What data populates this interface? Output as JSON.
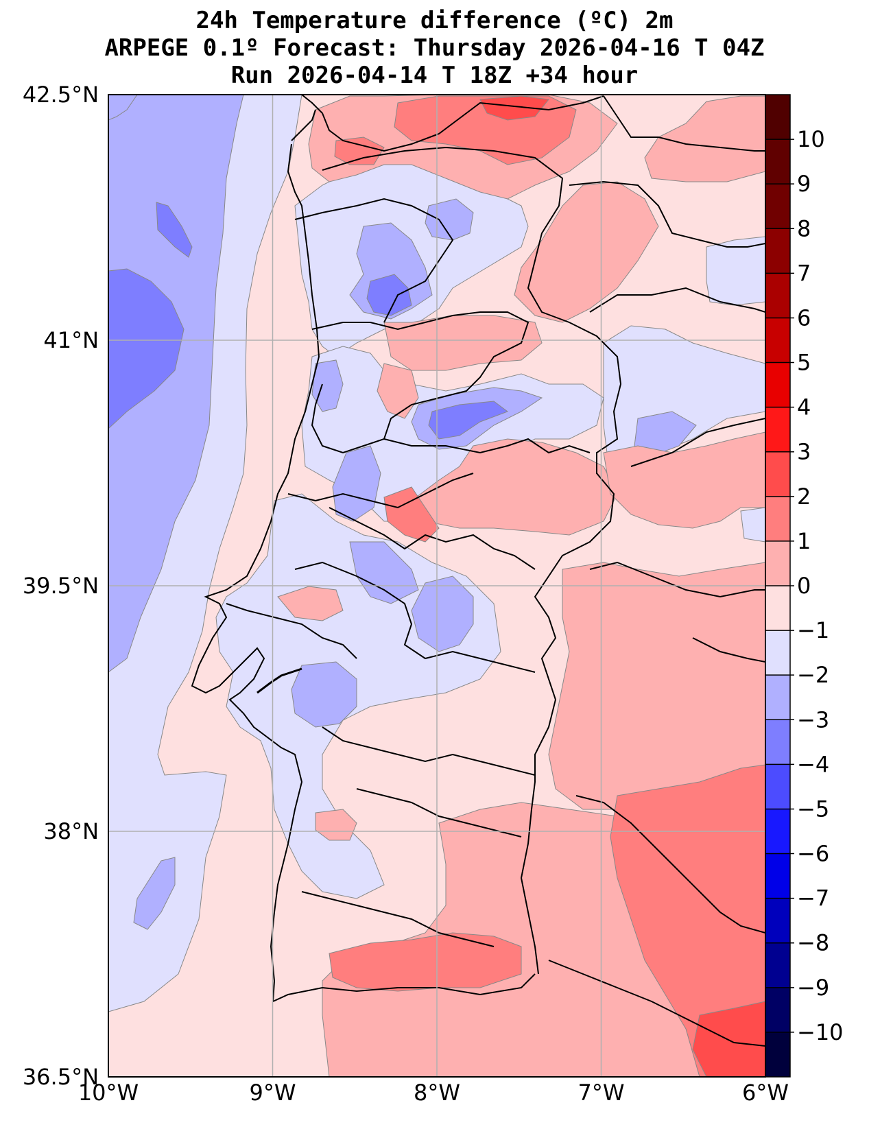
{
  "title": {
    "line1": "24h Temperature difference (ºC) 2m",
    "line2": "ARPEGE 0.1º Forecast: Thursday 2026-04-16 T 04Z",
    "line3": "Run 2026-04-14 T 18Z +34 hour"
  },
  "map": {
    "lon_range": [
      -10,
      -6
    ],
    "lat_range": [
      36.5,
      42.5
    ],
    "lon_ticks": [
      {
        "value": -10,
        "label": "10°W"
      },
      {
        "value": -9,
        "label": "9°W"
      },
      {
        "value": -8,
        "label": "8°W"
      },
      {
        "value": -7,
        "label": "7°W"
      },
      {
        "value": -6,
        "label": "6°W"
      }
    ],
    "lat_ticks": [
      {
        "value": 42.5,
        "label": "42.5°N"
      },
      {
        "value": 41,
        "label": "41°N"
      },
      {
        "value": 39.5,
        "label": "39.5°N"
      },
      {
        "value": 38,
        "label": "38°N"
      },
      {
        "value": 36.5,
        "label": "36.5°N"
      }
    ],
    "ocean_color": "#e0e0fe",
    "land_color": "#fee0e0"
  },
  "colorbar": {
    "levels": [
      -11,
      -10,
      -9,
      -8,
      -7,
      -6,
      -5,
      -4,
      -3,
      -2,
      -1,
      0,
      1,
      2,
      3,
      4,
      5,
      6,
      7,
      8,
      9,
      10,
      11
    ],
    "colors": [
      "#00003c",
      "#000064",
      "#000090",
      "#0000bc",
      "#0000e8",
      "#1818ff",
      "#4c4cff",
      "#7e7eff",
      "#b0b0ff",
      "#e0e0fe",
      "#fee0e0",
      "#feb0b0",
      "#ff7e7e",
      "#ff4c4c",
      "#ff1818",
      "#e80000",
      "#c80000",
      "#aa0000",
      "#8c0000",
      "#700000",
      "#600000",
      "#500000"
    ],
    "tick_labels": [
      {
        "value": -10,
        "label": "−10"
      },
      {
        "value": -9,
        "label": "−9"
      },
      {
        "value": -8,
        "label": "−8"
      },
      {
        "value": -7,
        "label": "−7"
      },
      {
        "value": -6,
        "label": "−6"
      },
      {
        "value": -5,
        "label": "−5"
      },
      {
        "value": -4,
        "label": "−4"
      },
      {
        "value": -3,
        "label": "−3"
      },
      {
        "value": -2,
        "label": "−2"
      },
      {
        "value": -1,
        "label": "−1"
      },
      {
        "value": 0,
        "label": "0"
      },
      {
        "value": 1,
        "label": "1"
      },
      {
        "value": 2,
        "label": "2"
      },
      {
        "value": 3,
        "label": "3"
      },
      {
        "value": 4,
        "label": "4"
      },
      {
        "value": 5,
        "label": "5"
      },
      {
        "value": 6,
        "label": "6"
      },
      {
        "value": 7,
        "label": "7"
      },
      {
        "value": 8,
        "label": "8"
      },
      {
        "value": 9,
        "label": "9"
      },
      {
        "value": 10,
        "label": "10"
      }
    ]
  }
}
